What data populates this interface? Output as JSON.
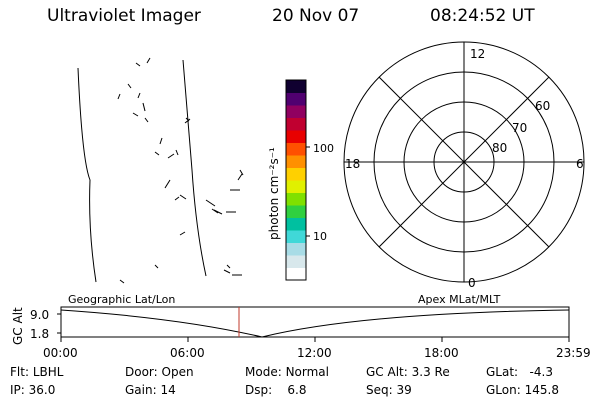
{
  "header": {
    "instrument": "Ultraviolet Imager",
    "date": "20 Nov 07",
    "time": "08:24:52 UT"
  },
  "colorbar": {
    "unit_label": "photon cm⁻²s⁻¹",
    "ticks": [
      {
        "label": "100",
        "value": 100
      },
      {
        "label": "10",
        "value": 10
      }
    ],
    "colors": [
      "#ffffff",
      "#d8e8ec",
      "#a8dce6",
      "#40d8d8",
      "#00c0a0",
      "#30d040",
      "#80e000",
      "#e0f000",
      "#ffd000",
      "#ff9000",
      "#ff5000",
      "#e80000",
      "#c00030",
      "#900060",
      "#500070",
      "#100030"
    ]
  },
  "geo_panel": {
    "label": "Geographic Lat/Lon"
  },
  "polar_plot": {
    "label": "Apex MLat/MLT",
    "mlt_labels": [
      {
        "label": "12",
        "position": "top"
      },
      {
        "label": "0",
        "position": "bottom"
      },
      {
        "label": "18",
        "position": "left"
      },
      {
        "label": "6",
        "position": "right"
      }
    ],
    "lat_labels": [
      "60",
      "70",
      "80"
    ]
  },
  "altitude_plot": {
    "ylabel": "GC Alt",
    "yticks": [
      "9.0",
      "1.8"
    ],
    "xticks": [
      "00:00",
      "06:00",
      "12:00",
      "18:00",
      "23:59"
    ],
    "marker_time": "08:24:52"
  },
  "status": {
    "flt_label": "Flt:",
    "flt_value": "LBHL",
    "ip_label": "IP:",
    "ip_value": "36.0",
    "door_label": "Door:",
    "door_value": "Open",
    "gain_label": "Gain:",
    "gain_value": "14",
    "mode_label": "Mode:",
    "mode_value": "Normal",
    "dsp_label": "Dsp:",
    "dsp_value": "6.8",
    "gcalt_label": "GC Alt:",
    "gcalt_value": "3.3 Re",
    "seq_label": "Seq:",
    "seq_value": "39",
    "glat_label": "GLat:",
    "glat_value": "-4.3",
    "glon_label": "GLon:",
    "glon_value": "145.8"
  }
}
